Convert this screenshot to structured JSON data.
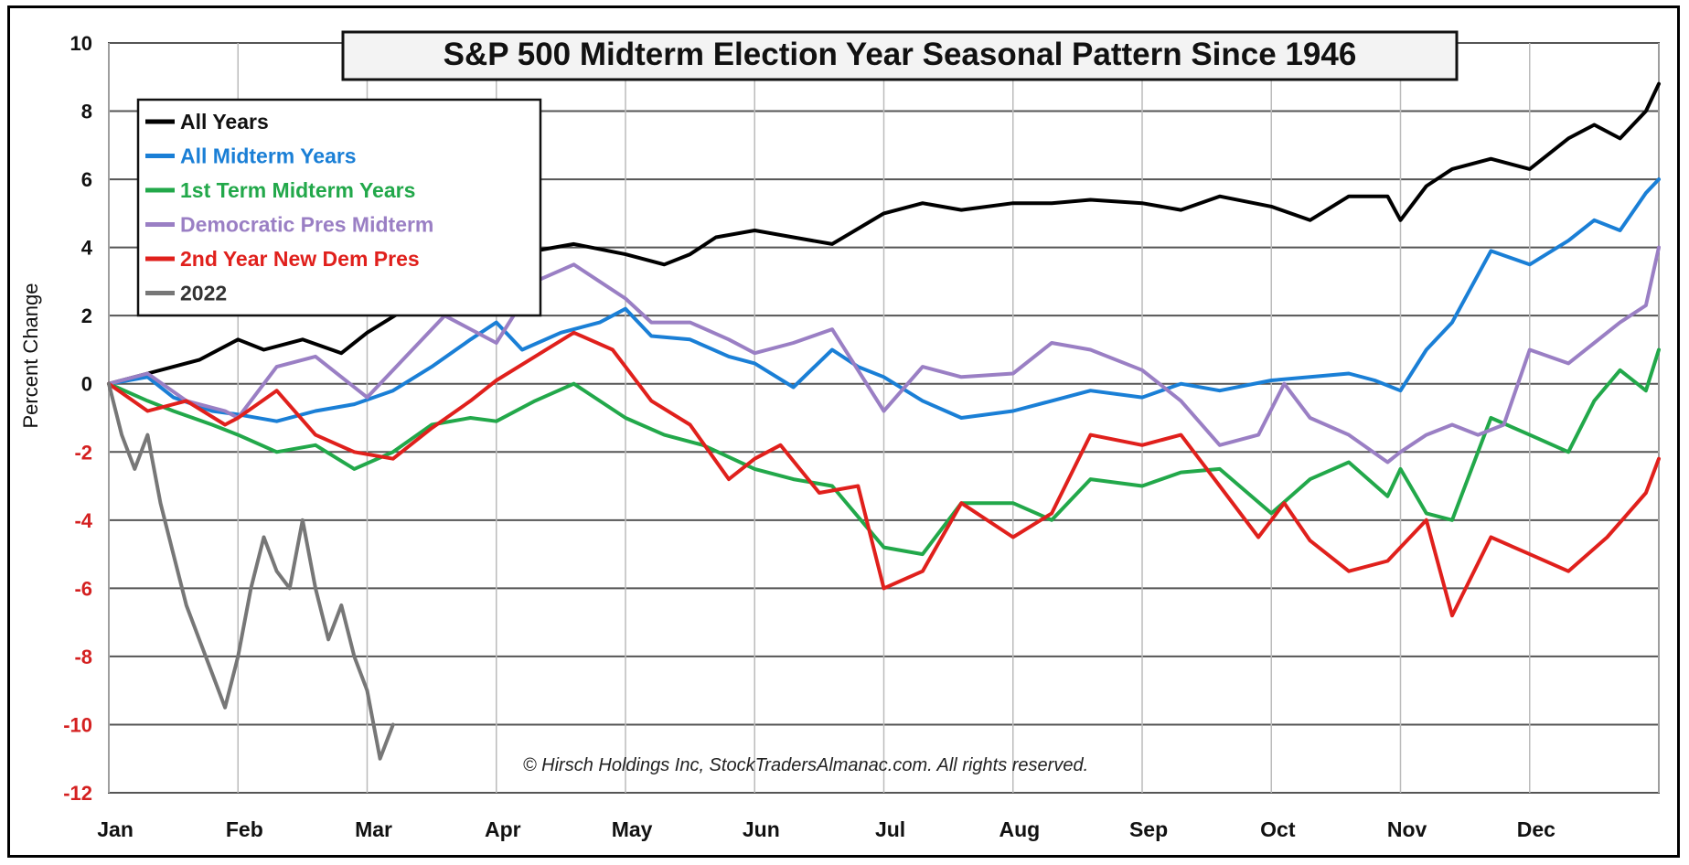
{
  "chart_data": {
    "type": "line",
    "title": "S&P 500 Midterm Election Year  Seasonal Pattern Since 1946",
    "ylabel": "Percent Change",
    "xlabel": "",
    "ylim": [
      -12,
      10
    ],
    "yticks": [
      10,
      8,
      6,
      4,
      2,
      0,
      -2,
      -4,
      -6,
      -8,
      -10,
      -12
    ],
    "months": [
      "Jan",
      "Feb",
      "Mar",
      "Apr",
      "May",
      "Jun",
      "Jul",
      "Aug",
      "Sep",
      "Oct",
      "Nov",
      "Dec"
    ],
    "grid": true,
    "legend_position": "top-left",
    "copyright": "© Hirsch Holdings Inc, StockTradersAlmanac.com. All rights reserved.",
    "series": [
      {
        "name": "All Years",
        "color": "#000000",
        "x": [
          0,
          0.3,
          0.5,
          0.7,
          1.0,
          1.2,
          1.5,
          1.8,
          2.0,
          2.3,
          2.6,
          3.0,
          3.3,
          3.6,
          4.0,
          4.3,
          4.5,
          4.7,
          5.0,
          5.3,
          5.6,
          6.0,
          6.3,
          6.6,
          7.0,
          7.3,
          7.6,
          8.0,
          8.3,
          8.6,
          9.0,
          9.3,
          9.6,
          9.9,
          10.0,
          10.2,
          10.4,
          10.7,
          11.0,
          11.3,
          11.5,
          11.7,
          11.9,
          12.0
        ],
        "y": [
          0,
          0.3,
          0.5,
          0.7,
          1.3,
          1.0,
          1.3,
          0.9,
          1.5,
          2.2,
          2.6,
          3.5,
          3.9,
          4.1,
          3.8,
          3.5,
          3.8,
          4.3,
          4.5,
          4.3,
          4.1,
          5.0,
          5.3,
          5.1,
          5.3,
          5.3,
          5.4,
          5.3,
          5.1,
          5.5,
          5.2,
          4.8,
          5.5,
          5.5,
          4.8,
          5.8,
          6.3,
          6.6,
          6.3,
          7.2,
          7.6,
          7.2,
          8.0,
          8.8
        ]
      },
      {
        "name": "All Midterm Years",
        "color": "#1a7fd6",
        "x": [
          0,
          0.3,
          0.5,
          0.8,
          1.0,
          1.3,
          1.6,
          1.9,
          2.2,
          2.5,
          2.8,
          3.0,
          3.2,
          3.5,
          3.8,
          4.0,
          4.2,
          4.5,
          4.8,
          5.0,
          5.3,
          5.6,
          5.8,
          6.0,
          6.3,
          6.6,
          7.0,
          7.3,
          7.6,
          8.0,
          8.3,
          8.6,
          9.0,
          9.3,
          9.6,
          9.8,
          10.0,
          10.2,
          10.4,
          10.7,
          11.0,
          11.3,
          11.5,
          11.7,
          11.9,
          12.0
        ],
        "y": [
          0,
          0.2,
          -0.4,
          -0.8,
          -0.9,
          -1.1,
          -0.8,
          -0.6,
          -0.2,
          0.5,
          1.3,
          1.8,
          1.0,
          1.5,
          1.8,
          2.2,
          1.4,
          1.3,
          0.8,
          0.6,
          -0.1,
          1.0,
          0.5,
          0.2,
          -0.5,
          -1.0,
          -0.8,
          -0.5,
          -0.2,
          -0.4,
          0.0,
          -0.2,
          0.1,
          0.2,
          0.3,
          0.1,
          -0.2,
          1.0,
          1.8,
          3.9,
          3.5,
          4.2,
          4.8,
          4.5,
          5.6,
          6.0
        ]
      },
      {
        "name": "1st Term Midterm Years",
        "color": "#22a84a",
        "x": [
          0,
          0.3,
          0.5,
          0.8,
          1.0,
          1.3,
          1.6,
          1.9,
          2.2,
          2.5,
          2.8,
          3.0,
          3.3,
          3.6,
          4.0,
          4.3,
          4.6,
          5.0,
          5.3,
          5.6,
          6.0,
          6.3,
          6.6,
          7.0,
          7.3,
          7.6,
          8.0,
          8.3,
          8.6,
          9.0,
          9.3,
          9.6,
          9.9,
          10.0,
          10.2,
          10.4,
          10.7,
          11.0,
          11.3,
          11.5,
          11.7,
          11.9,
          12.0
        ],
        "y": [
          0,
          -0.5,
          -0.8,
          -1.2,
          -1.5,
          -2.0,
          -1.8,
          -2.5,
          -2.0,
          -1.2,
          -1.0,
          -1.1,
          -0.5,
          0.0,
          -1.0,
          -1.5,
          -1.8,
          -2.5,
          -2.8,
          -3.0,
          -4.8,
          -5.0,
          -3.5,
          -3.5,
          -4.0,
          -2.8,
          -3.0,
          -2.6,
          -2.5,
          -3.8,
          -2.8,
          -2.3,
          -3.3,
          -2.5,
          -3.8,
          -4.0,
          -1.0,
          -1.5,
          -2.0,
          -0.5,
          0.4,
          -0.2,
          1.0
        ]
      },
      {
        "name": "Democratic Pres Midterm",
        "color": "#9a7fc4",
        "x": [
          0,
          0.3,
          0.6,
          0.9,
          1.0,
          1.3,
          1.6,
          2.0,
          2.3,
          2.6,
          3.0,
          3.3,
          3.6,
          3.8,
          4.0,
          4.2,
          4.5,
          4.8,
          5.0,
          5.3,
          5.6,
          6.0,
          6.3,
          6.6,
          7.0,
          7.3,
          7.6,
          8.0,
          8.3,
          8.6,
          8.9,
          9.1,
          9.3,
          9.6,
          9.9,
          10.0,
          10.2,
          10.4,
          10.6,
          10.8,
          11.0,
          11.3,
          11.5,
          11.7,
          11.9,
          12.0
        ],
        "y": [
          0,
          0.3,
          -0.5,
          -0.8,
          -1.0,
          0.5,
          0.8,
          -0.4,
          0.8,
          2.0,
          1.2,
          3.0,
          3.5,
          3.0,
          2.5,
          1.8,
          1.8,
          1.3,
          0.9,
          1.2,
          1.6,
          -0.8,
          0.5,
          0.2,
          0.3,
          1.2,
          1.0,
          0.4,
          -0.5,
          -1.8,
          -1.5,
          0.0,
          -1.0,
          -1.5,
          -2.3,
          -2.0,
          -1.5,
          -1.2,
          -1.5,
          -1.2,
          1.0,
          0.6,
          1.2,
          1.8,
          2.3,
          4.0
        ]
      },
      {
        "name": "2nd Year New Dem Pres",
        "color": "#e0201c",
        "x": [
          0,
          0.3,
          0.6,
          0.9,
          1.0,
          1.3,
          1.6,
          1.9,
          2.2,
          2.5,
          2.8,
          3.0,
          3.3,
          3.6,
          3.9,
          4.0,
          4.2,
          4.5,
          4.8,
          5.0,
          5.2,
          5.5,
          5.8,
          6.0,
          6.3,
          6.6,
          7.0,
          7.3,
          7.6,
          8.0,
          8.3,
          8.6,
          8.9,
          9.1,
          9.3,
          9.6,
          9.9,
          10.0,
          10.2,
          10.4,
          10.7,
          11.0,
          11.3,
          11.6,
          11.9,
          12.0
        ],
        "y": [
          0,
          -0.8,
          -0.5,
          -1.2,
          -1.0,
          -0.2,
          -1.5,
          -2.0,
          -2.2,
          -1.3,
          -0.5,
          0.1,
          0.8,
          1.5,
          1.0,
          0.5,
          -0.5,
          -1.2,
          -2.8,
          -2.2,
          -1.8,
          -3.2,
          -3.0,
          -6.0,
          -5.5,
          -3.5,
          -4.5,
          -3.8,
          -1.5,
          -1.8,
          -1.5,
          -3.0,
          -4.5,
          -3.5,
          -4.6,
          -5.5,
          -5.2,
          -4.8,
          -4.0,
          -6.8,
          -4.5,
          -5.0,
          -5.5,
          -4.5,
          -3.2,
          -2.2
        ]
      },
      {
        "name": "2022",
        "color": "#777777",
        "x": [
          0,
          0.1,
          0.2,
          0.3,
          0.4,
          0.5,
          0.6,
          0.7,
          0.8,
          0.9,
          1.0,
          1.1,
          1.2,
          1.3,
          1.4,
          1.5,
          1.6,
          1.7,
          1.8,
          1.9,
          2.0,
          2.1,
          2.2
        ],
        "y": [
          0,
          -1.5,
          -2.5,
          -1.5,
          -3.5,
          -5.0,
          -6.5,
          -7.5,
          -8.5,
          -9.5,
          -8.0,
          -6.0,
          -4.5,
          -5.5,
          -6.0,
          -4.0,
          -6.0,
          -7.5,
          -6.5,
          -8.0,
          -9.0,
          -11.0,
          -10.0
        ]
      }
    ]
  }
}
